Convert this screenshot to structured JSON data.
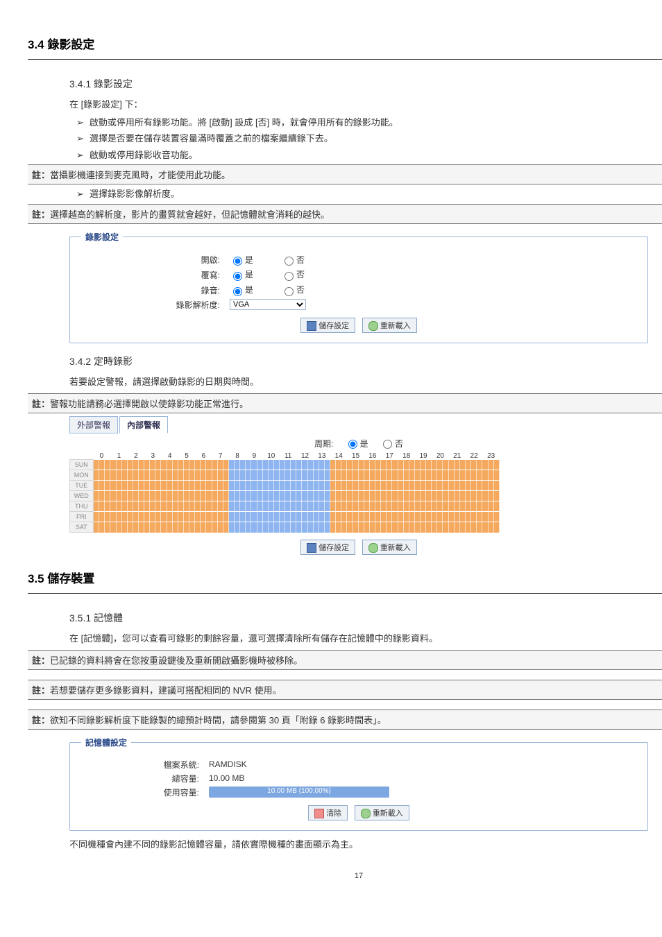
{
  "section34": {
    "title": "3.4 錄影設定",
    "sub341_title": "3.4.1 錄影設定",
    "under_text": "在 [錄影設定] 下：",
    "bullets": [
      "啟動或停用所有錄影功能。將 [啟動] 設成 [否] 時，就會停用所有的錄影功能。",
      "選擇是否要在儲存裝置容量滿時覆蓋之前的檔案繼續錄下去。",
      "啟動或停用錄影收音功能。"
    ],
    "note1": "註：當攝影機連接到麥克風時，才能使用此功能。",
    "bullet4": "選擇錄影影像解析度。",
    "note2": "註：選擇越高的解析度，影片的畫質就會越好，但記憶體就會消耗的越快。",
    "fieldset_legend": "錄影設定",
    "rows": [
      {
        "label": "開啟:",
        "yes": "是",
        "no": "否"
      },
      {
        "label": "覆寫:",
        "yes": "是",
        "no": "否"
      },
      {
        "label": "錄音:",
        "yes": "是",
        "no": "否"
      }
    ],
    "res_label": "錄影解析度:",
    "res_value": "VGA",
    "btn_save": "儲存設定",
    "btn_reload": "重新載入",
    "sub342_title": "3.4.2 定時錄影",
    "sub342_text": "若要設定警報，請選擇啟動錄影的日期與時間。",
    "note3": "註：警報功能請務必選擇開啟以使錄影功能正常進行。",
    "tab_external": "外部警報",
    "tab_internal": "內部警報",
    "recur_label": "周期:",
    "recur_yes": "是",
    "recur_no": "否",
    "days": [
      "SUN",
      "MON",
      "TUE",
      "WED",
      "THU",
      "FRI",
      "SAT"
    ],
    "hours": [
      "0",
      "1",
      "2",
      "3",
      "4",
      "5",
      "6",
      "7",
      "8",
      "9",
      "10",
      "11",
      "12",
      "13",
      "14",
      "15",
      "16",
      "17",
      "18",
      "19",
      "20",
      "21",
      "22",
      "23"
    ],
    "color_ranges": {
      "orange": [
        [
          0,
          7
        ],
        [
          14,
          16
        ],
        [
          17,
          23
        ]
      ],
      "blue": [
        [
          8,
          13
        ]
      ]
    }
  },
  "section35": {
    "title": "3.5 儲存裝置",
    "sub351_title": "3.5.1  記憶體",
    "intro": "在 [記憶體]，您可以查看可錄影的剩餘容量，還可選擇清除所有儲存在記憶體中的錄影資料。",
    "note_a": "註：已記錄的資料將會在您按重設鍵後及重新開啟攝影機時被移除。",
    "note_b": "註：若想要儲存更多錄影資料，建議可搭配相同的 NVR 使用。",
    "note_c": "註：欲知不同錄影解析度下能錄製的總預計時間，請參閱第 30 頁「附錄 6  錄影時間表」。",
    "fieldset_legend": "記憶體設定",
    "fs_label": "檔案系統:",
    "fs_value": "RAMDISK",
    "total_label": "總容量:",
    "total_value": "10.00 MB",
    "used_label": "使用容量:",
    "used_bar_text": "10.00 MB (100.00%)",
    "btn_clear": "清除",
    "btn_reload": "重新載入",
    "footer_text": "不同機種會內建不同的錄影記憶體容量，請依實際機種的畫面顯示為主。"
  },
  "page_number": "17"
}
